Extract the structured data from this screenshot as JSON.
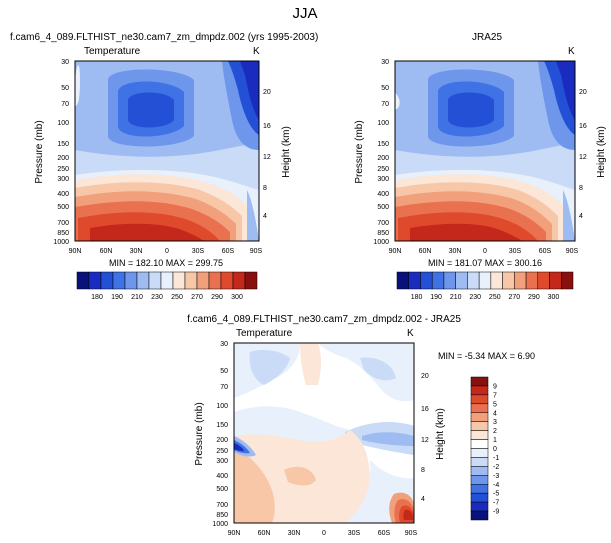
{
  "page": {
    "suptitle": "JJA"
  },
  "chart_data": [
    {
      "type": "heatmap",
      "title": "f.cam6_4_089.FLTHIST_ne30.cam7_zm_dmpdz.002 (yrs 1995-2003)",
      "subtitle_left": "Temperature",
      "units": "K",
      "ylabel": "Pressure (mb)",
      "ylabel_right": "Height (km)",
      "x_ticks": [
        "90N",
        "60N",
        "30N",
        "0",
        "30S",
        "60S",
        "90S"
      ],
      "y_ticks": [
        "30",
        "50",
        "70",
        "100",
        "150",
        "200",
        "250",
        "300",
        "400",
        "500",
        "700",
        "850",
        "1000"
      ],
      "y_ticks_right": [
        "20",
        "16",
        "12",
        "8",
        "4"
      ],
      "stats": "MIN = 182.10   MAX = 299.75"
    },
    {
      "type": "heatmap",
      "title": "JRA25",
      "units": "K",
      "ylabel": "Pressure (mb)",
      "ylabel_right": "Height (km)",
      "x_ticks": [
        "90N",
        "60N",
        "30N",
        "0",
        "30S",
        "60S",
        "90S"
      ],
      "y_ticks": [
        "30",
        "50",
        "70",
        "100",
        "150",
        "200",
        "250",
        "300",
        "400",
        "500",
        "700",
        "850",
        "1000"
      ],
      "y_ticks_right": [
        "20",
        "16",
        "12",
        "8",
        "4"
      ],
      "stats": "MIN = 181.07   MAX = 300.16"
    },
    {
      "type": "heatmap",
      "title": "f.cam6_4_089.FLTHIST_ne30.cam7_zm_dmpdz.002 - JRA25",
      "subtitle_left": "Temperature",
      "units": "K",
      "ylabel": "Pressure (mb)",
      "ylabel_right": "Height (km)",
      "x_ticks": [
        "90N",
        "60N",
        "30N",
        "0",
        "30S",
        "60S",
        "90S"
      ],
      "y_ticks": [
        "30",
        "50",
        "70",
        "100",
        "150",
        "200",
        "250",
        "300",
        "400",
        "500",
        "700",
        "850",
        "1000"
      ],
      "y_ticks_right": [
        "20",
        "16",
        "12",
        "8",
        "4"
      ],
      "stats": "MIN = -5.34   MAX =  6.90"
    }
  ],
  "colorbar_main": {
    "labels": [
      "180",
      "190",
      "210",
      "230",
      "250",
      "270",
      "290",
      "300"
    ],
    "colors": [
      "#08127a",
      "#1a2cc0",
      "#2450d6",
      "#3f72e4",
      "#6e97ec",
      "#9ebcf2",
      "#c9dbf7",
      "#e8f0fb",
      "#fbe6d8",
      "#f7c7a8",
      "#f2a07c",
      "#ea7150",
      "#e04a2c",
      "#c4281a",
      "#8a0f0f"
    ]
  },
  "colorbar_diff": {
    "labels": [
      "9",
      "7",
      "5",
      "4",
      "3",
      "2",
      "1",
      "0",
      "-1",
      "-2",
      "-3",
      "-4",
      "-5",
      "-7",
      "-9"
    ],
    "colors": [
      "#8a0f0f",
      "#c4281a",
      "#e04a2c",
      "#ea7150",
      "#f2a07c",
      "#f7c7a8",
      "#fbe6d8",
      "#ffffff",
      "#e8f0fb",
      "#c9dbf7",
      "#9ebcf2",
      "#6e97ec",
      "#3f72e4",
      "#2450d6",
      "#1a2cc0",
      "#08127a"
    ]
  }
}
